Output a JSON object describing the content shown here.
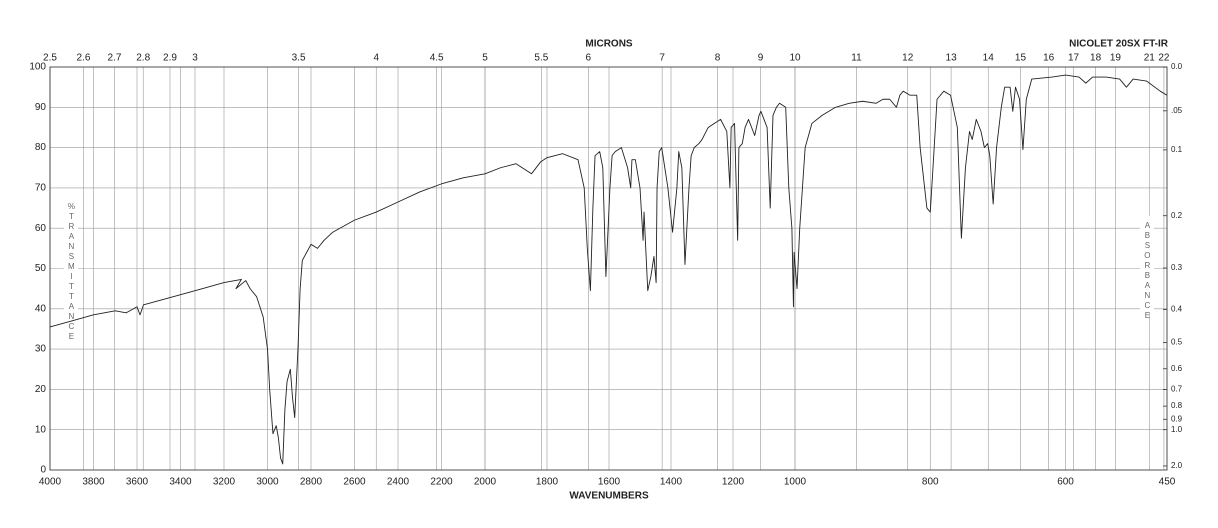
{
  "chart_data": {
    "type": "line",
    "title": "NICOLET 20SX FT-IR",
    "x_label": "WAVENUMBERS",
    "x2_label": "MICRONS",
    "y_label": "%TRANSMITTANCE",
    "y2_label": "ABSORBANCE",
    "color": "#222222",
    "grid": true,
    "xlim": [
      4000,
      450
    ],
    "x_scale_breaks": [
      4000,
      2000,
      1000,
      450
    ],
    "ylim": [
      0,
      100
    ],
    "xticks": [
      4000,
      3800,
      3600,
      3400,
      3200,
      3000,
      2800,
      2600,
      2400,
      2200,
      2000,
      1800,
      1600,
      1400,
      1200,
      1000,
      800,
      600,
      450
    ],
    "yticks": [
      0,
      10,
      20,
      30,
      40,
      50,
      60,
      70,
      80,
      90,
      100
    ],
    "x2ticks": [
      2.5,
      2.6,
      2.7,
      2.8,
      2.9,
      3,
      3.5,
      4,
      4.5,
      5,
      5.5,
      6,
      7,
      8,
      9,
      10,
      11,
      12,
      13,
      14,
      15,
      16,
      17,
      18,
      19,
      21,
      22
    ],
    "y2ticks": [
      {
        "value": 0,
        "label": "0.0"
      },
      {
        "value": 0.05,
        "label": ".05"
      },
      0.1,
      0.2,
      0.3,
      0.4,
      0.5,
      0.6,
      0.7,
      0.8,
      0.9,
      {
        "value": 1,
        "label": "1.0"
      },
      {
        "value": 2,
        "label": "2.0"
      }
    ],
    "x": [
      4000,
      3900,
      3800,
      3700,
      3650,
      3600,
      3586,
      3570,
      3500,
      3400,
      3300,
      3200,
      3120,
      3145,
      3100,
      3080,
      3050,
      3020,
      3000,
      2990,
      2975,
      2960,
      2950,
      2940,
      2930,
      2920,
      2910,
      2895,
      2885,
      2875,
      2860,
      2850,
      2840,
      2820,
      2800,
      2770,
      2740,
      2700,
      2600,
      2500,
      2400,
      2300,
      2200,
      2100,
      2000,
      1950,
      1900,
      1850,
      1820,
      1800,
      1750,
      1700,
      1680,
      1670,
      1660,
      1652,
      1645,
      1630,
      1620,
      1610,
      1597,
      1590,
      1580,
      1560,
      1540,
      1530,
      1526,
      1515,
      1500,
      1490,
      1487,
      1475,
      1465,
      1455,
      1448,
      1445,
      1438,
      1430,
      1420,
      1410,
      1395,
      1381,
      1375,
      1365,
      1355,
      1342,
      1335,
      1325,
      1310,
      1300,
      1280,
      1260,
      1240,
      1220,
      1210,
      1206,
      1195,
      1185,
      1181,
      1170,
      1161,
      1150,
      1130,
      1116,
      1110,
      1090,
      1080,
      1071,
      1060,
      1050,
      1030,
      1020,
      1010,
      1005,
      1003,
      997,
      993,
      985,
      975,
      960,
      940,
      920,
      900,
      880,
      870,
      860,
      850,
      845,
      840,
      830,
      820,
      815,
      805,
      800,
      796,
      790,
      780,
      770,
      760,
      754,
      748,
      742,
      738,
      732,
      725,
      720,
      715,
      712,
      707,
      702,
      695,
      690,
      682,
      678,
      674,
      668,
      663,
      658,
      650,
      620,
      600,
      580,
      570,
      560,
      540,
      520,
      510,
      500,
      480,
      460,
      450
    ],
    "values": [
      35.5,
      37,
      38.5,
      39.5,
      39,
      40.5,
      38.5,
      41,
      42,
      43.5,
      45,
      46.5,
      47.3,
      45,
      47,
      45,
      43,
      38,
      30,
      20,
      9,
      11,
      8,
      3,
      1.5,
      15,
      22,
      25,
      18,
      13,
      30,
      45,
      52,
      54,
      56,
      55,
      57,
      59,
      62,
      64,
      66.5,
      69,
      71,
      72.5,
      73.5,
      75,
      76,
      73.5,
      76.5,
      77.5,
      78.5,
      77,
      70,
      55,
      44.5,
      65,
      78,
      79,
      75,
      48,
      70,
      78,
      79,
      80,
      75,
      70,
      77,
      77,
      70,
      57,
      64,
      44.5,
      48,
      53,
      46.5,
      70,
      79,
      80,
      75,
      70,
      59,
      70,
      79,
      75,
      51,
      70,
      78,
      80,
      81,
      82,
      85,
      86,
      87,
      84,
      70,
      85,
      86,
      57,
      80,
      81,
      85,
      87,
      83,
      88,
      89,
      85,
      65,
      88,
      90,
      91,
      90,
      70,
      60,
      40.5,
      54,
      45,
      60,
      80,
      86,
      88,
      90,
      91,
      91.5,
      91,
      92,
      92,
      90,
      93,
      94,
      93,
      93,
      80,
      65,
      64,
      75,
      92,
      94,
      93,
      85,
      57.5,
      75,
      84,
      82,
      87,
      84,
      80,
      81,
      78,
      66,
      80,
      90,
      95,
      95,
      89,
      95,
      92,
      79.5,
      92,
      97,
      97.5,
      98,
      97.5,
      96,
      97.5,
      97.5,
      97,
      95,
      97,
      96.5,
      94,
      93
    ]
  }
}
